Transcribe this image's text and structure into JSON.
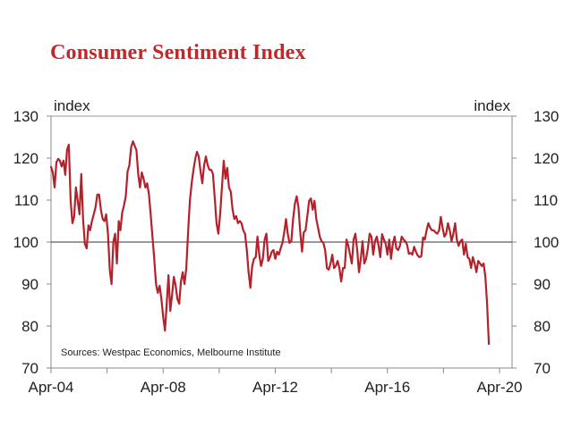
{
  "chart_data": {
    "type": "line",
    "title": "Consumer Sentiment Index",
    "xlabel": "",
    "ylabel_left": "index",
    "ylabel_right": "index",
    "ylim": [
      70,
      130
    ],
    "yticks": [
      70,
      80,
      90,
      100,
      110,
      120,
      130
    ],
    "x_start": "Apr-04",
    "x_end": "Apr-20",
    "x_range_years": [
      2004.25,
      2020.25
    ],
    "xtick_labels": [
      "Apr-04",
      "Apr-08",
      "Apr-12",
      "Apr-16",
      "Apr-20"
    ],
    "xtick_years": [
      2004.25,
      2008.25,
      2012.25,
      2016.25,
      2020.25
    ],
    "minor_tick_years": [
      2006.25,
      2010.25,
      2014.25,
      2018.25
    ],
    "reference_line": 100,
    "grid": false,
    "source": "Sources: Westpac Economics, Melbourne Institute",
    "colors": {
      "series": "#b5202a",
      "title": "#c0282a",
      "axis": "#888888",
      "reference": "#333333"
    },
    "series": [
      {
        "name": "Consumer Sentiment Index",
        "frequency": "monthly-approx",
        "start_year": 2004.25,
        "step_years": 0.0635,
        "values": [
          117.9,
          116.6,
          113,
          119,
          119.8,
          119.4,
          118,
          119.4,
          116,
          122,
          123.2,
          109.8,
          104.5,
          106,
          113,
          109.8,
          106.6,
          116.2,
          105.5,
          99.6,
          98.5,
          104,
          102.8,
          105,
          106.6,
          108.3,
          111.3,
          111.3,
          107.7,
          105.5,
          105,
          106.6,
          102,
          93.4,
          90,
          100,
          102,
          94.9,
          105,
          102.8,
          107,
          108.7,
          110.9,
          116.8,
          118.3,
          122.6,
          124,
          122.9,
          121.9,
          116.2,
          113,
          116.6,
          115.1,
          113,
          114,
          111.3,
          106.6,
          101.3,
          96,
          90,
          87.9,
          89.6,
          86.4,
          82.1,
          78.9,
          85.3,
          92.1,
          83.6,
          87.4,
          91.7,
          89.6,
          86.4,
          85.3,
          90.6,
          92.8,
          90,
          93.8,
          102.3,
          109.8,
          114,
          117.2,
          119.8,
          121.5,
          120.4,
          116.8,
          114,
          118.3,
          120.4,
          118.3,
          117.2,
          117.2,
          116.2,
          110.4,
          104.5,
          102,
          106.6,
          113,
          119.4,
          115.1,
          117.7,
          113,
          112,
          107.7,
          105.5,
          106.2,
          104.5,
          105,
          104.5,
          102.8,
          102,
          98.1,
          92.8,
          89.1,
          94.3,
          96,
          96.4,
          101.3,
          97,
          94.3,
          96,
          100.6,
          102,
          95.5,
          96.4,
          97.7,
          98.1,
          96,
          97.7,
          97,
          98.5,
          99.8,
          102.3,
          105.5,
          102,
          99.8,
          100.2,
          105.5,
          109.1,
          110.9,
          108.3,
          102.3,
          97.7,
          102.3,
          102.8,
          106.2,
          109.8,
          110.4,
          107.7,
          109.8,
          105.5,
          103.4,
          101.3,
          100.2,
          99.8,
          98.1,
          93.8,
          93.4,
          94.9,
          97,
          93.8,
          94.3,
          95.5,
          93.8,
          90.6,
          93.8,
          93.8,
          100.6,
          99.1,
          97,
          94.9,
          100.6,
          102,
          98.1,
          92.8,
          96,
          100.2,
          94.9,
          96,
          98.5,
          102,
          101.3,
          97,
          100.2,
          101.3,
          99.1,
          96.4,
          101.9,
          100.6,
          99.6,
          97,
          100.6,
          96,
          99.6,
          101.3,
          98.5,
          98.1,
          99.1,
          101.3,
          100.6,
          100.2,
          99.4,
          97.2,
          97.4,
          97,
          98.9,
          97.7,
          96.8,
          96.4,
          96.6,
          101.1,
          100.6,
          102.8,
          104.5,
          103.4,
          102.8,
          102.8,
          102.3,
          102,
          102.8,
          106,
          103.4,
          101.3,
          102,
          104.5,
          102.8,
          100.2,
          102,
          104.5,
          100.6,
          99.1,
          100.2,
          100.6,
          97,
          99.6,
          96.4,
          96,
          93.8,
          96.4,
          94.9,
          92.8,
          95.5,
          94.9,
          94.3,
          94.9,
          91.7,
          85.3,
          75.7
        ]
      }
    ]
  }
}
